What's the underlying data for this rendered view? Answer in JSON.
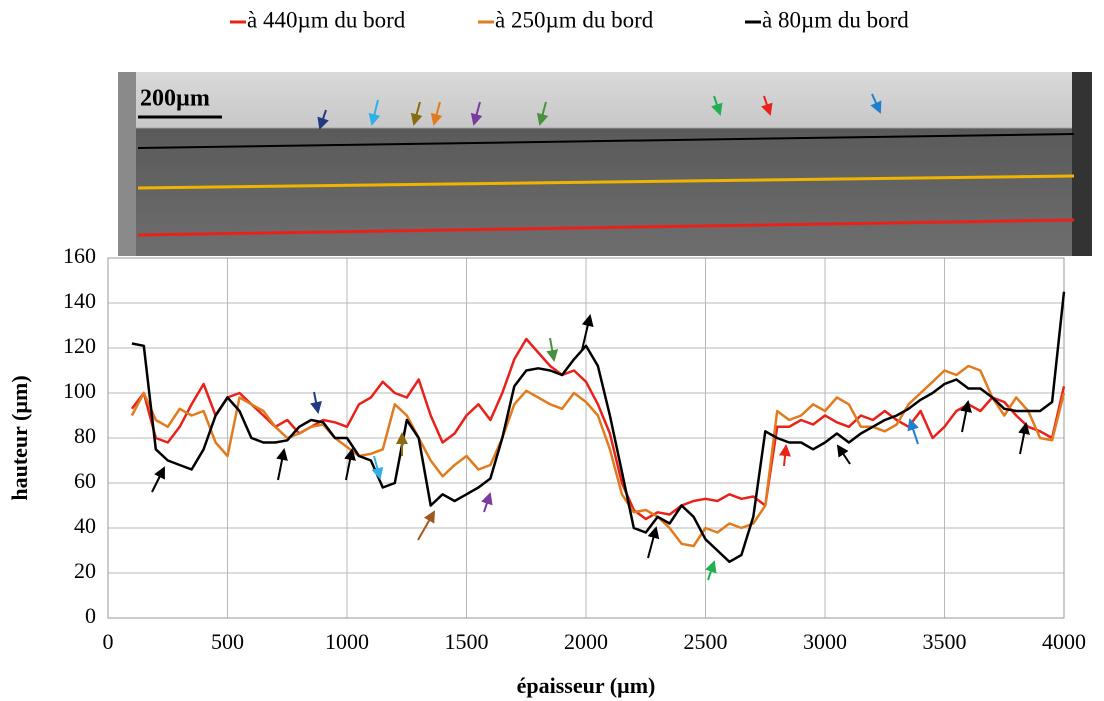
{
  "chart_data": {
    "type": "line",
    "scale_label": "200µm",
    "xlabel": "épaisseur (µm)",
    "ylabel": "hauteur (µm)",
    "xlim": [
      0,
      4000
    ],
    "xticks": [
      0,
      500,
      1000,
      1500,
      2000,
      2500,
      3000,
      3500,
      4000
    ],
    "ylim": [
      0,
      160
    ],
    "yticks": [
      0,
      20,
      40,
      60,
      80,
      100,
      120,
      140,
      160
    ],
    "grid": true,
    "legend": "top",
    "x": [
      100,
      150,
      200,
      250,
      300,
      350,
      400,
      450,
      500,
      550,
      600,
      650,
      700,
      750,
      800,
      850,
      900,
      950,
      1000,
      1050,
      1100,
      1150,
      1200,
      1250,
      1300,
      1350,
      1400,
      1450,
      1500,
      1550,
      1600,
      1650,
      1700,
      1750,
      1800,
      1850,
      1900,
      1950,
      2000,
      2050,
      2100,
      2150,
      2200,
      2250,
      2300,
      2350,
      2400,
      2450,
      2500,
      2550,
      2600,
      2650,
      2700,
      2750,
      2800,
      2850,
      2900,
      2950,
      3000,
      3050,
      3100,
      3150,
      3200,
      3250,
      3300,
      3350,
      3400,
      3450,
      3500,
      3550,
      3600,
      3650,
      3700,
      3750,
      3800,
      3850,
      3900,
      3950,
      4000
    ],
    "series": [
      {
        "name": "à 440µm du bord",
        "color": "#e8221b",
        "values": [
          93,
          100,
          80,
          78,
          85,
          95,
          104,
          90,
          98,
          100,
          95,
          90,
          85,
          88,
          82,
          85,
          88,
          87,
          85,
          95,
          98,
          105,
          100,
          98,
          106,
          90,
          78,
          82,
          90,
          95,
          88,
          100,
          115,
          124,
          118,
          112,
          108,
          110,
          105,
          95,
          82,
          60,
          48,
          44,
          47,
          46,
          50,
          52,
          53,
          52,
          55,
          53,
          54,
          50,
          85,
          85,
          88,
          86,
          90,
          87,
          85,
          90,
          88,
          92,
          88,
          85,
          92,
          80,
          85,
          92,
          95,
          92,
          98,
          96,
          90,
          85,
          83,
          80,
          103
        ]
      },
      {
        "name": "à 250µm du bord",
        "color": "#e07b20",
        "values": [
          90,
          100,
          88,
          85,
          93,
          90,
          92,
          78,
          72,
          98,
          95,
          92,
          85,
          80,
          82,
          85,
          86,
          80,
          76,
          72,
          73,
          75,
          95,
          90,
          80,
          70,
          63,
          68,
          72,
          66,
          68,
          80,
          95,
          101,
          98,
          95,
          93,
          100,
          96,
          90,
          75,
          55,
          47,
          48,
          45,
          40,
          33,
          32,
          40,
          38,
          42,
          40,
          42,
          50,
          92,
          88,
          90,
          95,
          92,
          98,
          95,
          85,
          85,
          83,
          86,
          95,
          100,
          105,
          110,
          108,
          112,
          110,
          98,
          90,
          98,
          92,
          80,
          79,
          100
        ]
      },
      {
        "name": "à 80µm du bord",
        "color": "#000000",
        "values": [
          122,
          121,
          75,
          70,
          68,
          66,
          75,
          90,
          98,
          92,
          80,
          78,
          78,
          79,
          85,
          88,
          87,
          80,
          80,
          72,
          70,
          58,
          60,
          88,
          80,
          50,
          55,
          52,
          55,
          58,
          62,
          80,
          103,
          110,
          111,
          110,
          108,
          115,
          121,
          112,
          90,
          65,
          40,
          38,
          45,
          42,
          50,
          45,
          35,
          30,
          25,
          28,
          45,
          83,
          80,
          78,
          78,
          75,
          78,
          82,
          78,
          82,
          85,
          88,
          90,
          93,
          97,
          100,
          104,
          106,
          102,
          102,
          98,
          93,
          92,
          92,
          92,
          96,
          145
        ]
      }
    ]
  }
}
